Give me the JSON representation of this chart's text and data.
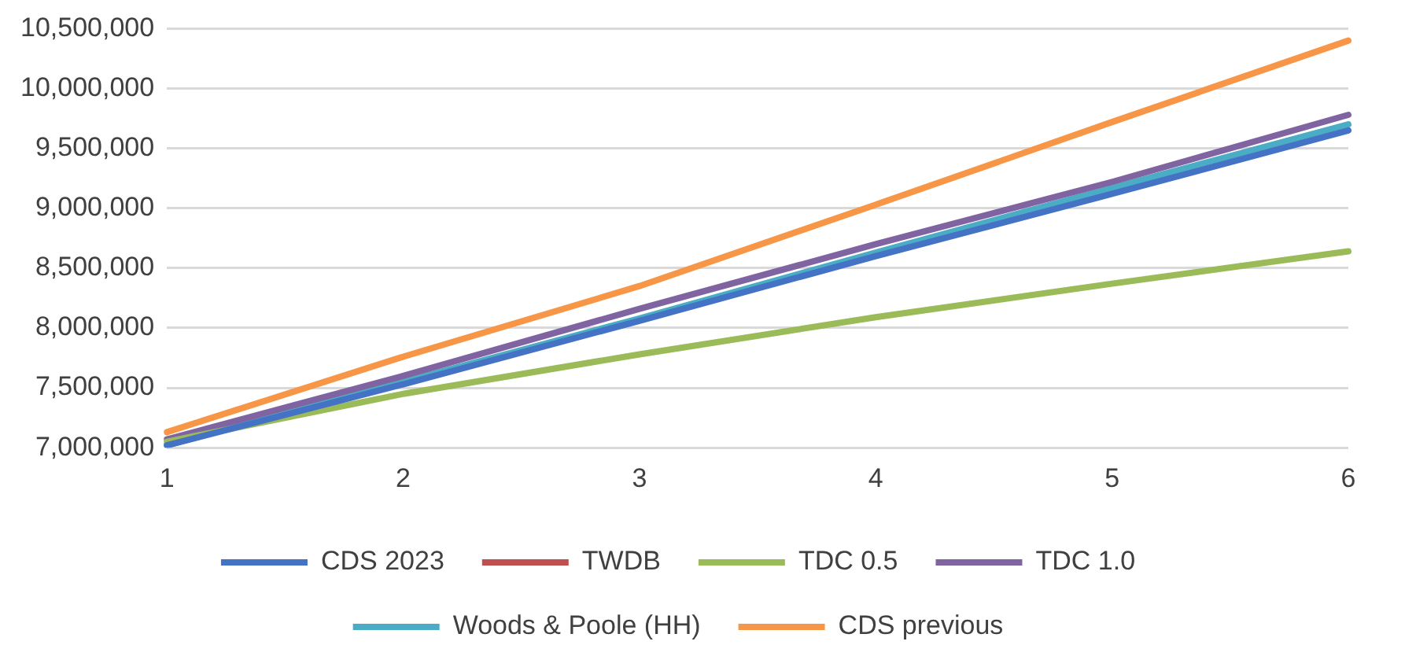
{
  "chart_data": {
    "type": "line",
    "categories": [
      "1",
      "2",
      "3",
      "4",
      "5",
      "6"
    ],
    "series": [
      {
        "name": "CDS 2023",
        "color": "#4472c4",
        "values": [
          7020000,
          7530000,
          8060000,
          8600000,
          9120000,
          9650000
        ]
      },
      {
        "name": "TWDB",
        "color": "#c0504d",
        "values": [
          null,
          null,
          null,
          null,
          null,
          null
        ]
      },
      {
        "name": "TDC 0.5",
        "color": "#9bbb59",
        "values": [
          7050000,
          7450000,
          7780000,
          8090000,
          8370000,
          8640000
        ]
      },
      {
        "name": "TDC 1.0",
        "color": "#8064a2",
        "values": [
          7070000,
          7600000,
          8160000,
          8700000,
          9220000,
          9780000
        ]
      },
      {
        "name": "Woods & Poole (HH)",
        "color": "#4bacc6",
        "values": [
          7020000,
          7550000,
          8080000,
          8630000,
          9170000,
          9700000
        ]
      },
      {
        "name": "CDS previous",
        "color": "#f79646",
        "values": [
          7130000,
          7760000,
          8350000,
          9030000,
          9720000,
          10400000
        ]
      }
    ],
    "ylim": [
      7000000,
      10500000
    ],
    "yticks": [
      {
        "value": 7000000,
        "label": "7,000,000"
      },
      {
        "value": 7500000,
        "label": "7,500,000"
      },
      {
        "value": 8000000,
        "label": "8,000,000"
      },
      {
        "value": 8500000,
        "label": "8,500,000"
      },
      {
        "value": 9000000,
        "label": "9,000,000"
      },
      {
        "value": 9500000,
        "label": "9,500,000"
      },
      {
        "value": 10000000,
        "label": "10,000,000"
      },
      {
        "value": 10500000,
        "label": "10,500,000"
      }
    ],
    "grid": "y",
    "legend": "bottom",
    "marker": "none",
    "line_style": "solid"
  }
}
